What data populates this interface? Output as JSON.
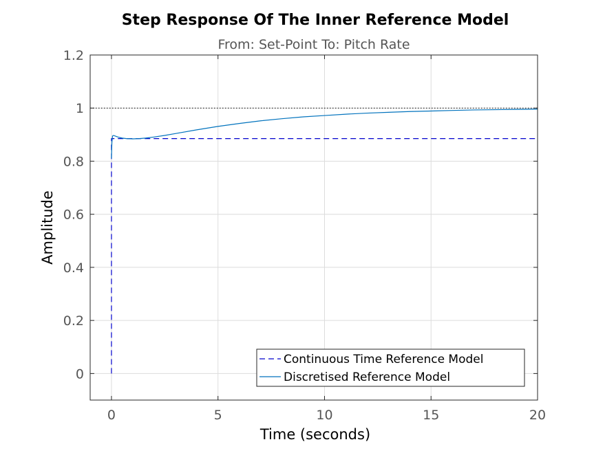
{
  "chart_data": {
    "type": "line",
    "title": "Step Response Of The Inner Reference Model",
    "subtitle": "From: Set-Point  To: Pitch Rate",
    "xlabel": "Time (seconds)",
    "ylabel": "Amplitude",
    "xlim": [
      -1,
      20
    ],
    "ylim": [
      -0.1,
      1.2
    ],
    "x_ticks": [
      0,
      5,
      10,
      15,
      20
    ],
    "x_tick_labels": [
      "0",
      "5",
      "10",
      "15",
      "20"
    ],
    "y_ticks": [
      0,
      0.2,
      0.4,
      0.6,
      0.8,
      1,
      1.2
    ],
    "y_tick_labels": [
      "0",
      "0.2",
      "0.4",
      "0.6",
      "0.8",
      "1",
      "1.2"
    ],
    "grid": true,
    "legend_position": "bottom-right",
    "reference_line": {
      "y": 1,
      "style": "dotted",
      "color": "#000000"
    },
    "series": [
      {
        "name": "Continuous Time Reference Model",
        "style": "dashed",
        "color": "#0000cc",
        "x": [
          0,
          0,
          20
        ],
        "y": [
          0,
          0.885,
          0.885
        ]
      },
      {
        "name": "Discretised Reference Model",
        "style": "solid",
        "color": "#0072bd",
        "x": [
          0,
          0.02,
          0.05,
          0.1,
          0.2,
          0.3,
          0.5,
          0.7,
          1,
          1.3,
          1.6,
          2,
          2.5,
          3,
          4,
          5,
          6,
          7,
          8,
          9,
          10,
          11,
          12,
          13,
          14,
          15,
          16,
          17,
          18,
          19,
          20
        ],
        "y": [
          0.81,
          0.87,
          0.895,
          0.897,
          0.894,
          0.891,
          0.887,
          0.885,
          0.884,
          0.885,
          0.887,
          0.891,
          0.897,
          0.904,
          0.918,
          0.931,
          0.942,
          0.952,
          0.96,
          0.967,
          0.972,
          0.977,
          0.981,
          0.984,
          0.987,
          0.989,
          0.991,
          0.993,
          0.994,
          0.995,
          0.996
        ]
      }
    ]
  }
}
